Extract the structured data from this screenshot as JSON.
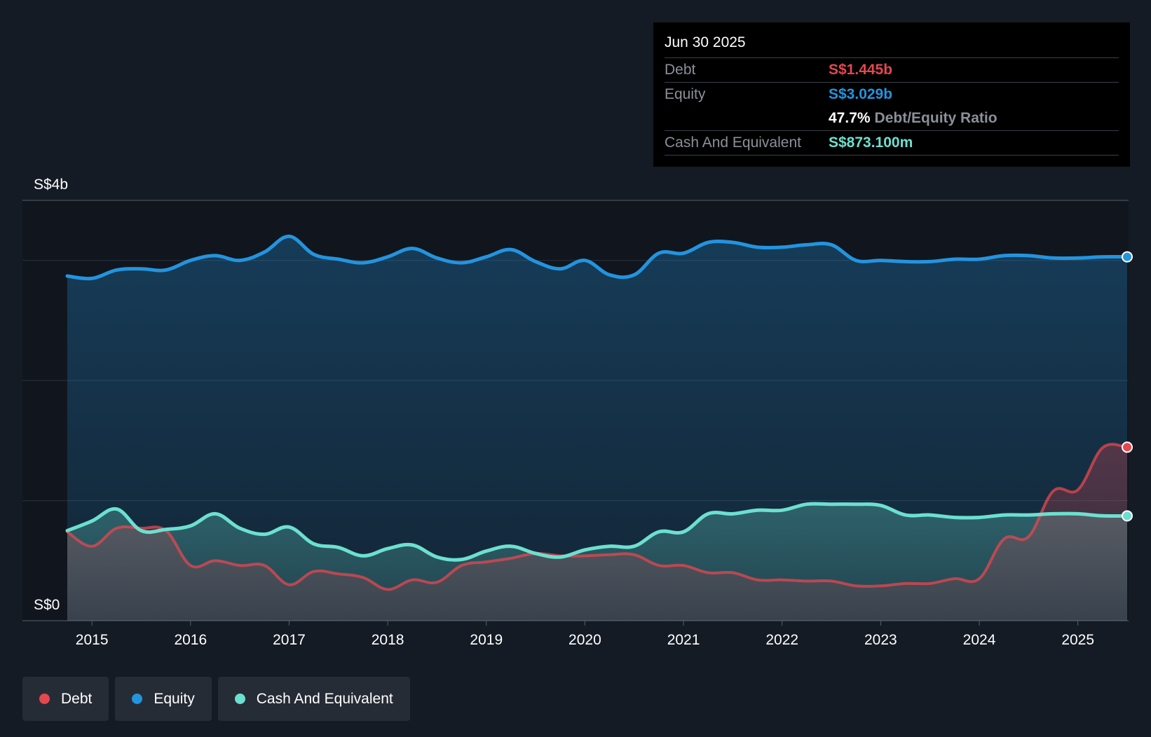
{
  "colors": {
    "debt": "#e5474f",
    "equity": "#2394df",
    "cash": "#6ce0d0"
  },
  "tooltip": {
    "date": "Jun 30 2025",
    "debt_label": "Debt",
    "debt_value": "S$1.445b",
    "equity_label": "Equity",
    "equity_value": "S$3.029b",
    "ratio_value": "47.7%",
    "ratio_label": "Debt/Equity Ratio",
    "cash_label": "Cash And Equivalent",
    "cash_value": "S$873.100m"
  },
  "legend": [
    {
      "label": "Debt",
      "color": "#e5474f"
    },
    {
      "label": "Equity",
      "color": "#2394df"
    },
    {
      "label": "Cash And Equivalent",
      "color": "#6ce0d0"
    }
  ],
  "chart_data": {
    "type": "line",
    "title": "",
    "xlabel": "",
    "ylabel": "",
    "y_top_label": "S$4b",
    "y_bottom_label": "S$0",
    "ylim": [
      0,
      3.5
    ],
    "xlim": [
      2014.6,
      2025.5
    ],
    "x_ticks": [
      "2015",
      "2016",
      "2017",
      "2018",
      "2019",
      "2020",
      "2021",
      "2022",
      "2023",
      "2024",
      "2025"
    ],
    "x_tick_values": [
      2015,
      2016,
      2017,
      2018,
      2019,
      2020,
      2021,
      2022,
      2023,
      2024,
      2025
    ],
    "y_gridlines": [
      1,
      2,
      3,
      3.5
    ],
    "series": [
      {
        "name": "Equity",
        "key": "equity",
        "x": [
          2014.75,
          2015.0,
          2015.25,
          2015.5,
          2015.75,
          2016.0,
          2016.25,
          2016.5,
          2016.75,
          2017.0,
          2017.25,
          2017.5,
          2017.75,
          2018.0,
          2018.25,
          2018.5,
          2018.75,
          2019.0,
          2019.25,
          2019.5,
          2019.75,
          2020.0,
          2020.25,
          2020.5,
          2020.75,
          2021.0,
          2021.25,
          2021.5,
          2021.75,
          2022.0,
          2022.25,
          2022.5,
          2022.75,
          2023.0,
          2023.25,
          2023.5,
          2023.75,
          2024.0,
          2024.25,
          2024.5,
          2024.75,
          2025.0,
          2025.25,
          2025.5
        ],
        "values": [
          2.87,
          2.85,
          2.92,
          2.93,
          2.92,
          3.0,
          3.04,
          3.0,
          3.07,
          3.2,
          3.05,
          3.01,
          2.98,
          3.03,
          3.1,
          3.02,
          2.98,
          3.03,
          3.09,
          2.99,
          2.93,
          3.0,
          2.88,
          2.88,
          3.06,
          3.06,
          3.15,
          3.15,
          3.11,
          3.11,
          3.13,
          3.13,
          3.0,
          3.0,
          2.99,
          2.99,
          3.01,
          3.01,
          3.04,
          3.04,
          3.02,
          3.02,
          3.03,
          3.03
        ]
      },
      {
        "name": "Debt",
        "key": "debt",
        "x": [
          2014.75,
          2015.0,
          2015.25,
          2015.5,
          2015.75,
          2016.0,
          2016.25,
          2016.5,
          2016.75,
          2017.0,
          2017.25,
          2017.5,
          2017.75,
          2018.0,
          2018.25,
          2018.5,
          2018.75,
          2019.0,
          2019.25,
          2019.5,
          2019.75,
          2020.0,
          2020.25,
          2020.5,
          2020.75,
          2021.0,
          2021.25,
          2021.5,
          2021.75,
          2022.0,
          2022.25,
          2022.5,
          2022.75,
          2023.0,
          2023.25,
          2023.5,
          2023.75,
          2024.0,
          2024.25,
          2024.5,
          2024.75,
          2025.0,
          2025.25,
          2025.5
        ],
        "values": [
          0.74,
          0.62,
          0.77,
          0.77,
          0.75,
          0.46,
          0.5,
          0.46,
          0.46,
          0.3,
          0.41,
          0.39,
          0.36,
          0.26,
          0.34,
          0.32,
          0.46,
          0.49,
          0.52,
          0.56,
          0.54,
          0.54,
          0.55,
          0.55,
          0.46,
          0.46,
          0.4,
          0.4,
          0.34,
          0.34,
          0.33,
          0.33,
          0.29,
          0.29,
          0.31,
          0.31,
          0.35,
          0.35,
          0.68,
          0.7,
          1.08,
          1.09,
          1.44,
          1.445
        ]
      },
      {
        "name": "Cash And Equivalent",
        "key": "cash",
        "x": [
          2014.75,
          2015.0,
          2015.25,
          2015.5,
          2015.75,
          2016.0,
          2016.25,
          2016.5,
          2016.75,
          2017.0,
          2017.25,
          2017.5,
          2017.75,
          2018.0,
          2018.25,
          2018.5,
          2018.75,
          2019.0,
          2019.25,
          2019.5,
          2019.75,
          2020.0,
          2020.25,
          2020.5,
          2020.75,
          2021.0,
          2021.25,
          2021.5,
          2021.75,
          2022.0,
          2022.25,
          2022.5,
          2022.75,
          2023.0,
          2023.25,
          2023.5,
          2023.75,
          2024.0,
          2024.25,
          2024.5,
          2024.75,
          2025.0,
          2025.25,
          2025.5
        ],
        "values": [
          0.75,
          0.83,
          0.93,
          0.75,
          0.76,
          0.79,
          0.89,
          0.77,
          0.72,
          0.78,
          0.64,
          0.61,
          0.54,
          0.6,
          0.63,
          0.53,
          0.51,
          0.58,
          0.62,
          0.56,
          0.53,
          0.59,
          0.62,
          0.62,
          0.74,
          0.74,
          0.89,
          0.89,
          0.92,
          0.92,
          0.97,
          0.97,
          0.97,
          0.96,
          0.88,
          0.88,
          0.86,
          0.86,
          0.88,
          0.88,
          0.89,
          0.89,
          0.873,
          0.873
        ]
      }
    ]
  }
}
